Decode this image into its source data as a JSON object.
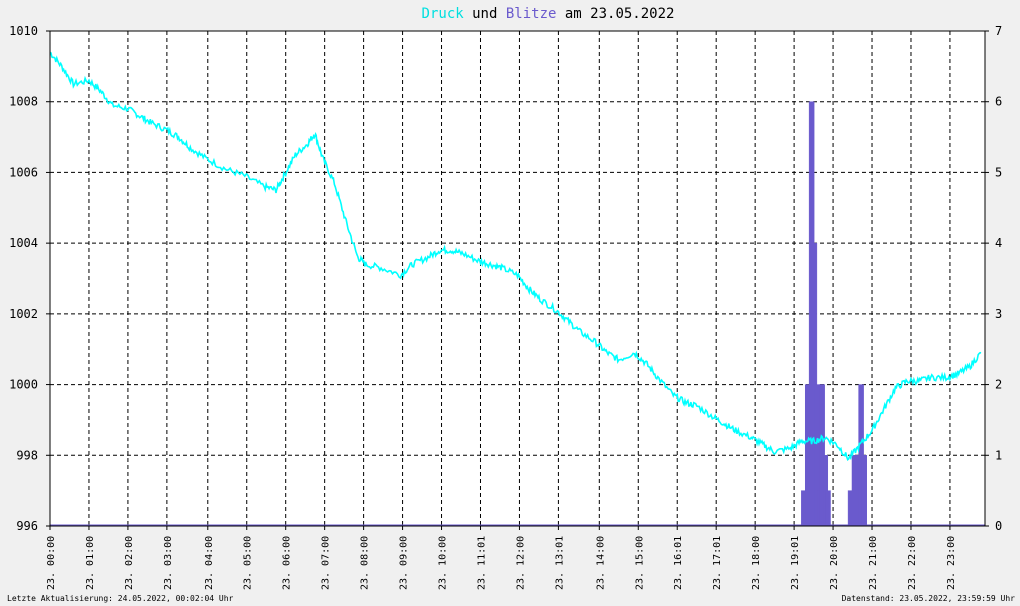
{
  "header": {
    "title_part1": "Druck",
    "title_part2": " und ",
    "title_part3": "Blitze",
    "title_part4": " am 23.05.2022"
  },
  "footer": {
    "left": "Letzte Aktualisierung: 24.05.2022, 00:02:04 Uhr",
    "right": "Datenstand: 23.05.2022, 23:59:59 Uhr"
  },
  "colors": {
    "pressure": "#00ffff",
    "lightning": "#6a5acd",
    "grid": "#000000",
    "background": "#ffffff",
    "title_mid": "#000000"
  },
  "chart_data": {
    "type": "line",
    "title": "Druck und Blitze am 23.05.2022",
    "x_axis": {
      "unit": "hours",
      "range": [
        0,
        24
      ]
    },
    "y_left": {
      "range": [
        996,
        1010
      ],
      "ticks": [
        "996",
        "998",
        "1000",
        "1002",
        "1004",
        "1006",
        "1008",
        "1010"
      ]
    },
    "y_right": {
      "range": [
        0,
        7
      ],
      "ticks": [
        "0",
        "1",
        "2",
        "3",
        "4",
        "5",
        "6",
        "7"
      ]
    },
    "x_tick_labels": [
      {
        "x": 0,
        "day": "23.",
        "time": "00:00"
      },
      {
        "x": 1,
        "day": "23.",
        "time": "01:00"
      },
      {
        "x": 2,
        "day": "23.",
        "time": "02:00"
      },
      {
        "x": 3,
        "day": "23.",
        "time": "03:00"
      },
      {
        "x": 4.05,
        "day": "23.",
        "time": "04:00"
      },
      {
        "x": 5.05,
        "day": "23.",
        "time": "05:00"
      },
      {
        "x": 6.05,
        "day": "23.",
        "time": "06:00"
      },
      {
        "x": 7.05,
        "day": "23.",
        "time": "07:00"
      },
      {
        "x": 8.05,
        "day": "23.",
        "time": "08:00"
      },
      {
        "x": 9.05,
        "day": "23.",
        "time": "09:00"
      },
      {
        "x": 10.05,
        "day": "23.",
        "time": "10:00"
      },
      {
        "x": 11.05,
        "day": "23.",
        "time": "11:01"
      },
      {
        "x": 12.05,
        "day": "23.",
        "time": "12:00"
      },
      {
        "x": 13.05,
        "day": "23.",
        "time": "13:01"
      },
      {
        "x": 14.1,
        "day": "23.",
        "time": "14:00"
      },
      {
        "x": 15.1,
        "day": "23.",
        "time": "15:00"
      },
      {
        "x": 16.1,
        "day": "23.",
        "time": "16:01"
      },
      {
        "x": 17.1,
        "day": "23.",
        "time": "17:01"
      },
      {
        "x": 18.1,
        "day": "23.",
        "time": "18:00"
      },
      {
        "x": 19.1,
        "day": "23.",
        "time": "19:01"
      },
      {
        "x": 20.1,
        "day": "23.",
        "time": "20:00"
      },
      {
        "x": 21.1,
        "day": "23.",
        "time": "21:00"
      },
      {
        "x": 22.1,
        "day": "23.",
        "time": "22:00"
      },
      {
        "x": 23.1,
        "day": "23.",
        "time": "23:00"
      }
    ],
    "grid": true,
    "series": [
      {
        "name": "Druck",
        "axis": "left",
        "x": [
          0,
          0.3,
          0.6,
          1.0,
          1.3,
          1.6,
          2.0,
          2.3,
          2.6,
          3.0,
          3.3,
          3.6,
          4.0,
          4.5,
          5.0,
          5.5,
          5.8,
          6.0,
          6.3,
          6.6,
          6.8,
          7.0,
          7.3,
          7.6,
          7.9,
          8.1,
          8.5,
          9.0,
          9.3,
          9.7,
          10.0,
          10.3,
          10.6,
          11.0,
          11.3,
          11.6,
          12.0,
          12.3,
          12.6,
          13.0,
          13.3,
          13.6,
          14.0,
          14.3,
          14.6,
          15.0,
          15.3,
          15.6,
          16.0,
          16.3,
          16.6,
          17.0,
          17.3,
          17.6,
          18.0,
          18.3,
          18.6,
          19.0,
          19.3,
          19.6,
          19.9,
          20.2,
          20.5,
          20.8,
          21.1,
          21.4,
          21.7,
          22.0,
          22.3,
          22.6,
          23.0,
          23.3,
          23.6,
          23.9
        ],
        "values": [
          1009.4,
          1009.0,
          1008.5,
          1008.6,
          1008.3,
          1007.9,
          1007.8,
          1007.6,
          1007.4,
          1007.2,
          1007.0,
          1006.7,
          1006.4,
          1006.1,
          1005.9,
          1005.6,
          1005.5,
          1005.9,
          1006.5,
          1006.8,
          1007.1,
          1006.4,
          1005.7,
          1004.6,
          1003.6,
          1003.4,
          1003.3,
          1003.1,
          1003.4,
          1003.6,
          1003.8,
          1003.8,
          1003.7,
          1003.5,
          1003.4,
          1003.3,
          1003.1,
          1002.7,
          1002.4,
          1002.1,
          1001.8,
          1001.5,
          1001.2,
          1000.9,
          1000.7,
          1000.9,
          1000.6,
          1000.2,
          999.7,
          999.5,
          999.4,
          999.1,
          998.9,
          998.7,
          998.5,
          998.3,
          998.1,
          998.2,
          998.4,
          998.4,
          998.5,
          998.3,
          997.9,
          998.3,
          998.7,
          999.3,
          999.9,
          1000.1,
          1000.1,
          1000.2,
          1000.2,
          1000.3,
          1000.5,
          1000.9
        ]
      },
      {
        "name": "Blitze",
        "axis": "right",
        "x": [
          19.4,
          19.55,
          19.65,
          19.75,
          19.85,
          19.95,
          20.0,
          20.05,
          20.1,
          20.15,
          20.2,
          20.25,
          20.3,
          20.35,
          20.4,
          20.45,
          20.5,
          20.55,
          20.6,
          20.65,
          20.7,
          20.75,
          20.8,
          20.85,
          20.9,
          20.95,
          21.0,
          21.05,
          21.1,
          21.15,
          21.2,
          21.25,
          21.3,
          21.35,
          21.4,
          21.45,
          21.5,
          21.55,
          21.6,
          21.65,
          21.7,
          21.75,
          21.8,
          21.85,
          21.9,
          21.95,
          22.0,
          22.05,
          22.1,
          22.15,
          22.2,
          22.25,
          22.3,
          22.35,
          22.4,
          22.45,
          22.5,
          22.55,
          22.6,
          22.65,
          22.7,
          22.75,
          22.8,
          22.85,
          22.9,
          22.95,
          23.0,
          23.05
        ],
        "values": [
          0,
          0.5,
          2,
          6,
          4,
          2,
          2,
          1,
          2,
          0.5,
          0,
          0,
          0,
          0,
          0,
          0,
          0,
          0,
          0,
          0,
          0,
          0,
          0,
          0,
          0,
          0,
          0,
          0,
          0,
          0,
          0,
          0,
          0,
          0,
          0,
          0,
          0,
          0,
          0,
          0,
          0,
          0,
          0,
          0,
          0,
          0,
          0,
          0,
          0,
          0,
          0,
          0,
          0,
          0,
          0,
          0,
          0,
          0,
          0,
          0,
          0,
          0,
          0,
          0,
          0,
          0,
          0,
          0
        ]
      }
    ],
    "lightning_events": [
      {
        "x": 19.35,
        "value": 0.5
      },
      {
        "x": 19.45,
        "value": 2
      },
      {
        "x": 19.55,
        "value": 6
      },
      {
        "x": 19.62,
        "value": 4
      },
      {
        "x": 19.7,
        "value": 2
      },
      {
        "x": 19.75,
        "value": 0.5
      },
      {
        "x": 19.82,
        "value": 2
      },
      {
        "x": 19.9,
        "value": 1
      },
      {
        "x": 19.97,
        "value": 0.5
      },
      {
        "x": 20.55,
        "value": 0.5
      },
      {
        "x": 20.65,
        "value": 1
      },
      {
        "x": 20.75,
        "value": 1
      },
      {
        "x": 20.82,
        "value": 2
      },
      {
        "x": 20.9,
        "value": 1
      }
    ]
  }
}
